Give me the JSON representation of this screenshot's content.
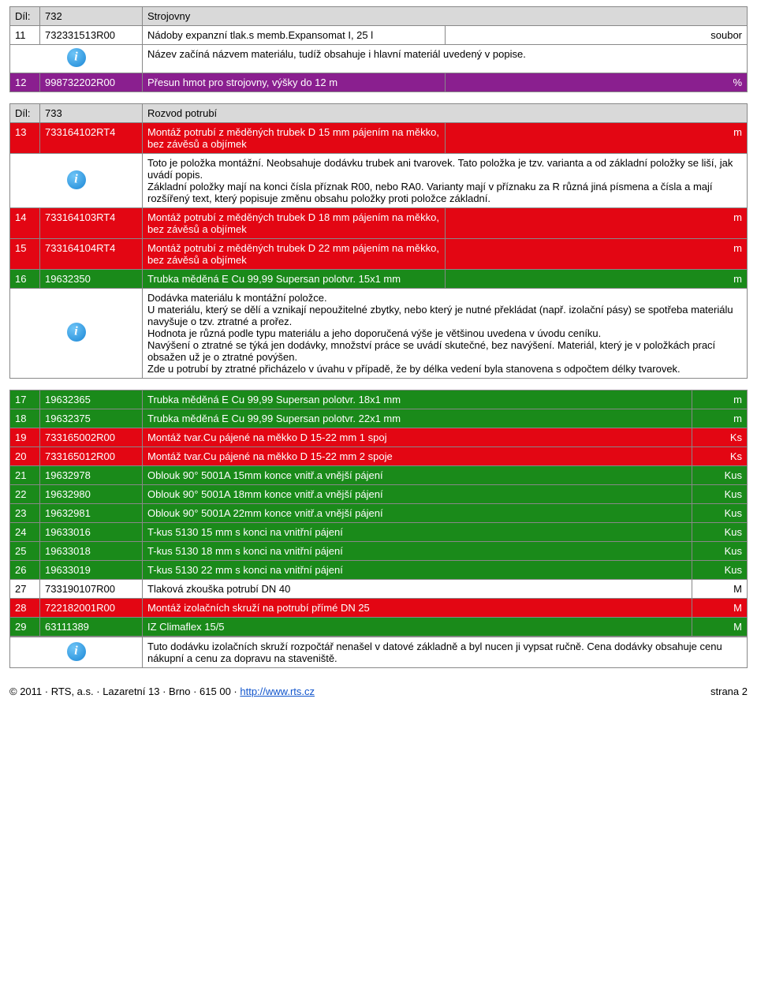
{
  "section732": {
    "dil_label": "Díl:",
    "dil_num": "732",
    "dil_name": "Strojovny",
    "rows": [
      {
        "cls": "row-white",
        "n": "11",
        "code": "732331513R00",
        "desc": "Nádoby expanzní tlak.s memb.Expansomat I, 25 l",
        "unit": "soubor"
      }
    ],
    "info11": "Název začíná názvem materiálu, tudíž obsahuje i hlavní materiál uvedený v popise.",
    "row12": {
      "cls": "row-purple",
      "n": "12",
      "code": "998732202R00",
      "desc": "Přesun hmot pro strojovny, výšky do 12 m",
      "unit": "%"
    }
  },
  "section733": {
    "dil_label": "Díl:",
    "dil_num": "733",
    "dil_name": "Rozvod potrubí",
    "rows13": {
      "cls": "row-red",
      "n": "13",
      "code": "733164102RT4",
      "desc": "Montáž potrubí z měděných trubek D 15 mm pájením na měkko, bez závěsů a objímek",
      "unit": "m"
    },
    "info13": "Toto je položka montážní. Neobsahuje dodávku trubek ani tvarovek. Tato položka je tzv. varianta a od základní položky se liší, jak uvádí popis.\nZákladní položky mají na konci čísla příznak R00, nebo RA0. Varianty mají v příznaku za R různá jiná písmena a čísla a mají rozšířený text, který popisuje změnu obsahu položky proti položce základní.",
    "rows_red": [
      {
        "cls": "row-red",
        "n": "14",
        "code": "733164103RT4",
        "desc": "Montáž potrubí z měděných trubek D 18 mm pájením na měkko, bez závěsů a objímek",
        "unit": "m"
      },
      {
        "cls": "row-red",
        "n": "15",
        "code": "733164104RT4",
        "desc": "Montáž potrubí z měděných trubek D 22 mm pájením na měkko, bez závěsů a objímek",
        "unit": "m"
      }
    ],
    "row16": {
      "cls": "row-green",
      "n": "16",
      "code": "19632350",
      "desc": "Trubka měděná E Cu 99,99 Supersan polotvr. 15x1 mm",
      "unit": "m"
    },
    "info16": "Dodávka materiálu k montážní položce.\nU materiálu, který se dělí a vznikají nepoužitelné zbytky, nebo který je nutné překládat (např. izolační pásy) se spotřeba materiálu navyšuje o tzv. ztratné a prořez.\nHodnota je různá podle typu materiálu a jeho doporučená výše je většinou uvedena v úvodu ceníku.\nNavýšení o ztratné se týká jen dodávky, množství práce se uvádí skutečné, bez navýšení. Materiál, který je v položkách prací obsažen už je o ztratné povýšen.\nZde u potrubí by ztratné přicházelo v úvahu v případě, že by délka vedení byla stanovena s odpočtem délky tvarovek.",
    "rows_tail": [
      {
        "cls": "row-green",
        "n": "17",
        "code": "19632365",
        "desc": "Trubka měděná E Cu 99,99 Supersan polotvr. 18x1 mm",
        "unit": "m"
      },
      {
        "cls": "row-green",
        "n": "18",
        "code": "19632375",
        "desc": "Trubka měděná E Cu 99,99 Supersan polotvr. 22x1 mm",
        "unit": "m"
      },
      {
        "cls": "row-red",
        "n": "19",
        "code": "733165002R00",
        "desc": "Montáž tvar.Cu pájené na měkko D 15-22 mm 1 spoj",
        "unit": "Ks"
      },
      {
        "cls": "row-red",
        "n": "20",
        "code": "733165012R00",
        "desc": "Montáž tvar.Cu pájené na měkko D 15-22 mm 2 spoje",
        "unit": "Ks"
      },
      {
        "cls": "row-green",
        "n": "21",
        "code": "19632978",
        "desc": "Oblouk 90° 5001A 15mm konce vnitř.a vnější pájení",
        "unit": "Kus"
      },
      {
        "cls": "row-green",
        "n": "22",
        "code": "19632980",
        "desc": "Oblouk 90° 5001A 18mm konce vnitř.a vnější pájení",
        "unit": "Kus"
      },
      {
        "cls": "row-green",
        "n": "23",
        "code": "19632981",
        "desc": "Oblouk 90° 5001A 22mm konce vnitř.a vnější pájení",
        "unit": "Kus"
      },
      {
        "cls": "row-green",
        "n": "24",
        "code": "19633016",
        "desc": "T-kus 5130  15 mm s konci na vnitřní pájení",
        "unit": "Kus"
      },
      {
        "cls": "row-green",
        "n": "25",
        "code": "19633018",
        "desc": "T-kus 5130  18 mm s konci na vnitřní pájení",
        "unit": "Kus"
      },
      {
        "cls": "row-green",
        "n": "26",
        "code": "19633019",
        "desc": "T-kus 5130  22 mm s konci na vnitřní pájení",
        "unit": "Kus"
      },
      {
        "cls": "row-white",
        "n": "27",
        "code": "733190107R00",
        "desc": "Tlaková zkouška potrubí  DN 40",
        "unit": "M"
      },
      {
        "cls": "row-red",
        "n": "28",
        "code": "722182001R00",
        "desc": "Montáž izolačních skruží na potrubí přímé DN 25",
        "unit": "M"
      },
      {
        "cls": "row-green",
        "n": "29",
        "code": "63111389",
        "desc": "IZ Climaflex 15/5",
        "unit": "M"
      }
    ],
    "info_end": "Tuto dodávku izolačních skruží rozpočtář nenašel v datové základně a byl nucen ji vypsat ručně. Cena dodávky obsahuje cenu nákupní a cenu za dopravu na staveniště."
  },
  "footer": {
    "left_prefix": "© 2011 · RTS, a.s. · Lazaretní 13 · Brno · 615 00 · ",
    "link_text": "http://www.rts.cz",
    "link_href": "http://www.rts.cz",
    "right": "strana 2"
  },
  "colors": {
    "red": "#e30613",
    "green": "#1a8a1a",
    "purple": "#8a1f8f",
    "grey": "#d9d9d9"
  }
}
